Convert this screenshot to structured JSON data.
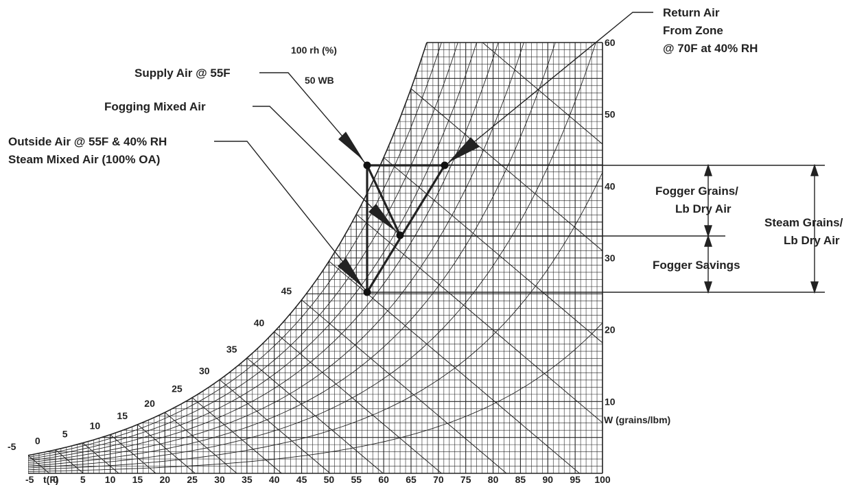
{
  "chart_data": {
    "type": "psychrometric",
    "x_axis": {
      "label": "t(F)",
      "min": -5,
      "max": 100,
      "ticks": [
        "-5",
        "0",
        "5",
        "10",
        "15",
        "20",
        "25",
        "30",
        "35",
        "40",
        "45",
        "50",
        "55",
        "60",
        "65",
        "70",
        "75",
        "80",
        "85",
        "90",
        "95",
        "100"
      ]
    },
    "y_axis": {
      "label": "W (grains/lbm)",
      "position": "right",
      "min": 0,
      "max": 60,
      "ticks": [
        "10",
        "20",
        "30",
        "40",
        "50",
        "60"
      ]
    },
    "saturation_label": "100 rh (%)",
    "wet_bulb_label": "50 WB",
    "wet_bulb_ticks": [
      "-5",
      "0",
      "5",
      "10",
      "15",
      "20",
      "25",
      "30",
      "35",
      "40",
      "45"
    ],
    "points": [
      {
        "name": "Supply Air @ 55F",
        "t": 55,
        "w": 43.5
      },
      {
        "name": "Return Air From Zone @ 70F at 40% RH",
        "t": 70,
        "w": 43.5
      },
      {
        "name": "Fogging Mixed Air",
        "t": 61.5,
        "w": 34
      },
      {
        "name": "Outside Air @ 55F & 40% RH / Steam Mixed Air (100% OA)",
        "t": 55,
        "w": 26
      }
    ],
    "process_lines": [
      {
        "from": "Outside Air",
        "to": "Supply Air"
      },
      {
        "from": "Supply Air",
        "to": "Return Air"
      },
      {
        "from": "Outside Air",
        "to": "Return Air"
      },
      {
        "from": "Supply Air",
        "to": "Fogging Mixed Air"
      }
    ],
    "callouts": {
      "return_air": [
        "Return Air",
        "From Zone",
        "@ 70F at 40% RH"
      ],
      "supply_air": "Supply Air @ 55F",
      "fogging_mixed": "Fogging Mixed Air",
      "outside_air": [
        "Outside Air @ 55F & 40% RH",
        "Steam Mixed Air (100% OA)"
      ]
    },
    "dimensions": {
      "fogger_grains": [
        "Fogger Grains/",
        "Lb Dry Air"
      ],
      "fogger_savings": "Fogger Savings",
      "steam_grains": [
        "Steam Grains/",
        "Lb Dry Air"
      ]
    }
  }
}
